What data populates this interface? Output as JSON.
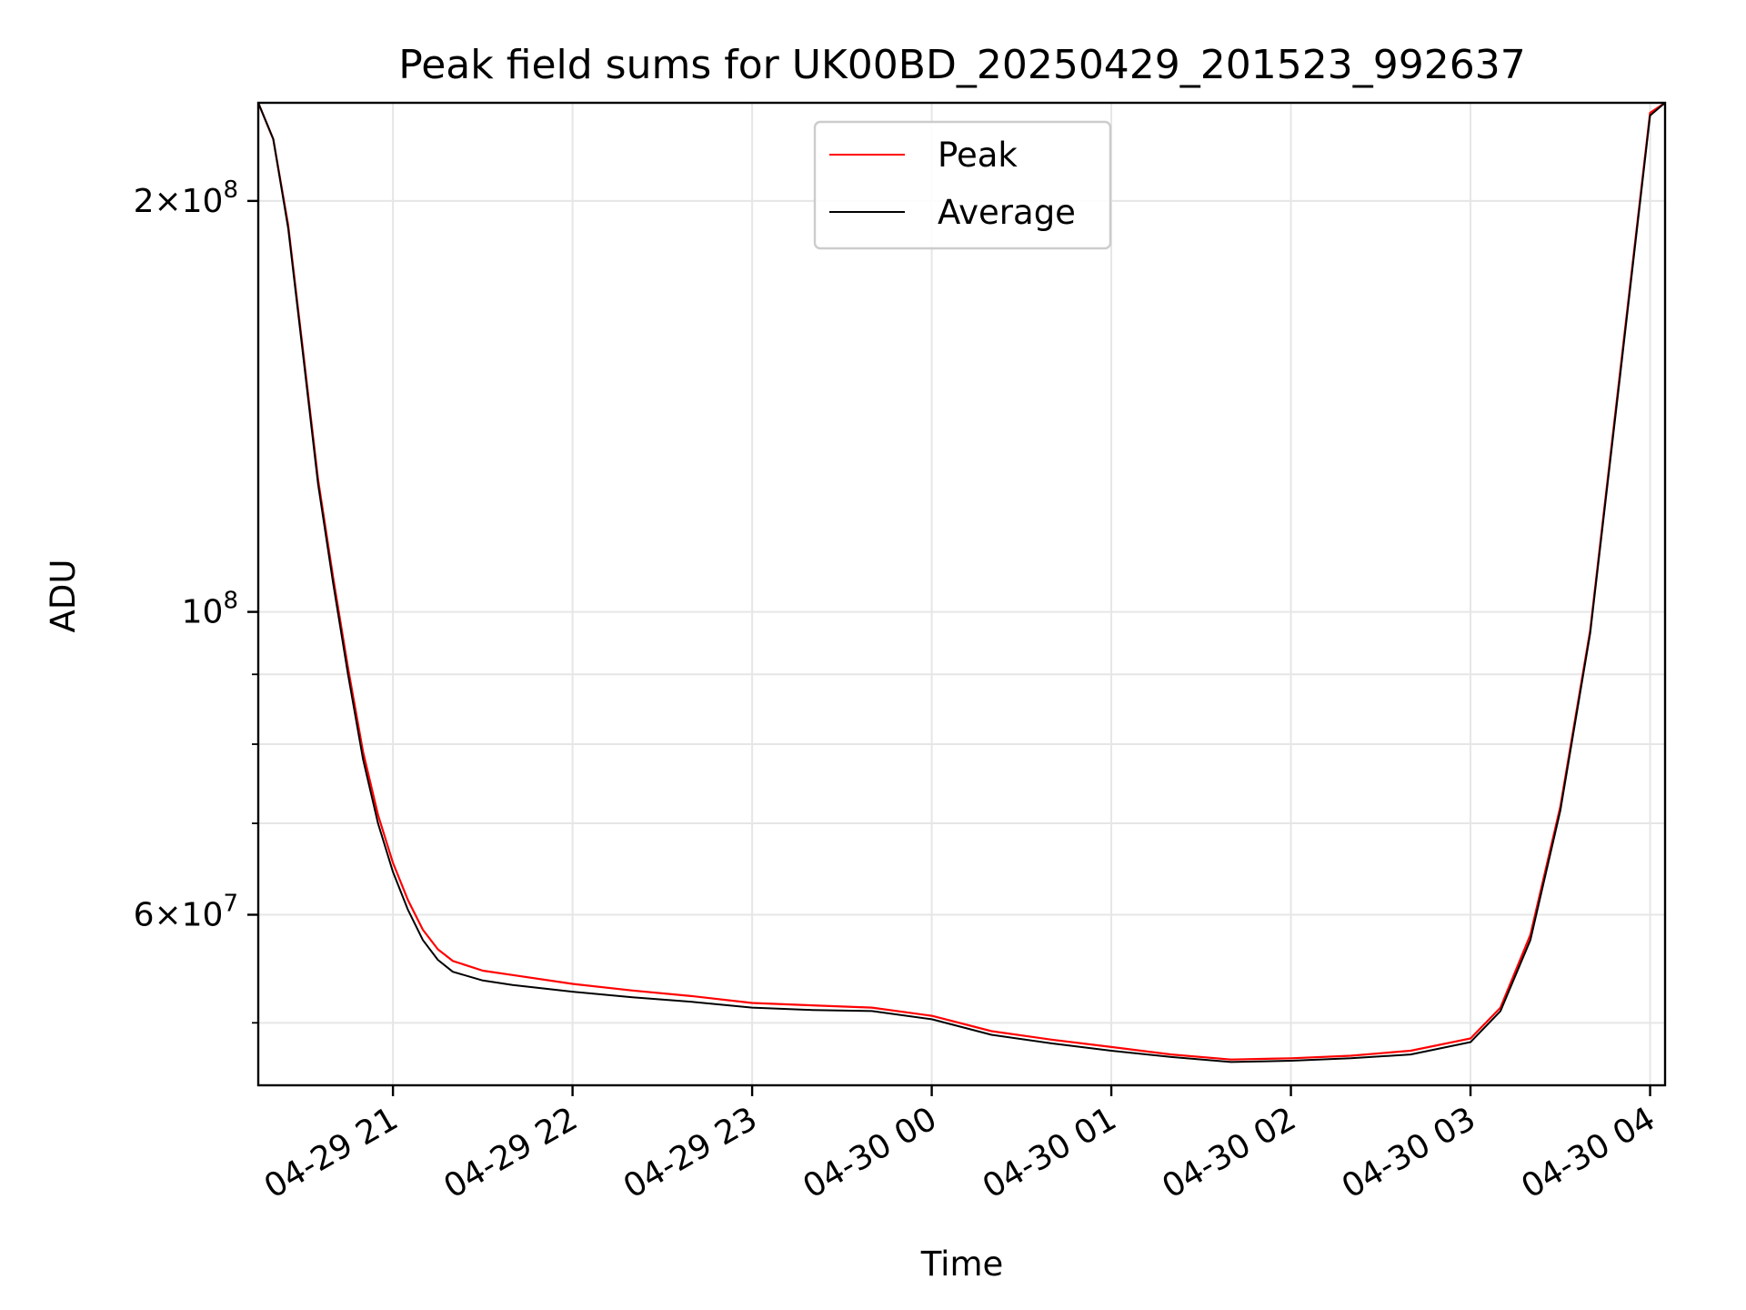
{
  "chart_data": {
    "type": "line",
    "title": "Peak field sums for UK00BD_20250429_201523_992637",
    "xlabel": "Time",
    "ylabel": "ADU",
    "y_scale": "log",
    "ylim": [
      45000000,
      236000000
    ],
    "xlim": [
      "2025-04-29 20:15",
      "2025-04-30 04:05"
    ],
    "grid": true,
    "legend_position": "top-center",
    "x_ticks": [
      {
        "x": "2025-04-29 21:00",
        "label": "04-29 21"
      },
      {
        "x": "2025-04-29 22:00",
        "label": "04-29 22"
      },
      {
        "x": "2025-04-29 23:00",
        "label": "04-29 23"
      },
      {
        "x": "2025-04-30 00:00",
        "label": "04-30 00"
      },
      {
        "x": "2025-04-30 01:00",
        "label": "04-30 01"
      },
      {
        "x": "2025-04-30 02:00",
        "label": "04-30 02"
      },
      {
        "x": "2025-04-30 03:00",
        "label": "04-30 03"
      },
      {
        "x": "2025-04-30 04:00",
        "label": "04-30 04"
      }
    ],
    "y_ticks": [
      {
        "value": 200000000,
        "base": "2",
        "exp": "8"
      },
      {
        "value": 100000000,
        "base": "",
        "exp": "8"
      },
      {
        "value": 60000000,
        "base": "6",
        "exp": "7"
      }
    ],
    "y_minor_ticks": [
      50000000,
      70000000,
      80000000,
      90000000
    ],
    "series": [
      {
        "name": "Peak",
        "color": "#ff0000",
        "points": [
          [
            "2025-04-29 20:15",
            236000000
          ],
          [
            "2025-04-29 20:20",
            222000000
          ],
          [
            "2025-04-29 20:25",
            192000000
          ],
          [
            "2025-04-29 20:30",
            155000000
          ],
          [
            "2025-04-29 20:35",
            125000000
          ],
          [
            "2025-04-29 20:40",
            106000000
          ],
          [
            "2025-04-29 20:45",
            91000000
          ],
          [
            "2025-04-29 20:50",
            79000000
          ],
          [
            "2025-04-29 20:55",
            71000000
          ],
          [
            "2025-04-29 21:00",
            65500000
          ],
          [
            "2025-04-29 21:05",
            61500000
          ],
          [
            "2025-04-29 21:10",
            58500000
          ],
          [
            "2025-04-29 21:15",
            56600000
          ],
          [
            "2025-04-29 21:20",
            55500000
          ],
          [
            "2025-04-29 21:30",
            54600000
          ],
          [
            "2025-04-29 21:40",
            54200000
          ],
          [
            "2025-04-29 22:00",
            53400000
          ],
          [
            "2025-04-29 22:20",
            52800000
          ],
          [
            "2025-04-29 22:40",
            52300000
          ],
          [
            "2025-04-29 23:00",
            51700000
          ],
          [
            "2025-04-29 23:20",
            51500000
          ],
          [
            "2025-04-29 23:40",
            51300000
          ],
          [
            "2025-04-30 00:00",
            50600000
          ],
          [
            "2025-04-30 00:20",
            49300000
          ],
          [
            "2025-04-30 00:40",
            48600000
          ],
          [
            "2025-04-30 01:00",
            48000000
          ],
          [
            "2025-04-30 01:20",
            47400000
          ],
          [
            "2025-04-30 01:40",
            47000000
          ],
          [
            "2025-04-30 02:00",
            47100000
          ],
          [
            "2025-04-30 02:20",
            47300000
          ],
          [
            "2025-04-30 02:40",
            47700000
          ],
          [
            "2025-04-30 03:00",
            48700000
          ],
          [
            "2025-04-30 03:10",
            51300000
          ],
          [
            "2025-04-30 03:20",
            58000000
          ],
          [
            "2025-04-30 03:30",
            72000000
          ],
          [
            "2025-04-30 03:40",
            97000000
          ],
          [
            "2025-04-30 03:50",
            150000000
          ],
          [
            "2025-04-30 04:00",
            232000000
          ],
          [
            "2025-04-30 04:05",
            236000000
          ]
        ]
      },
      {
        "name": "Average",
        "color": "#000000",
        "points": [
          [
            "2025-04-29 20:15",
            236000000
          ],
          [
            "2025-04-29 20:20",
            222000000
          ],
          [
            "2025-04-29 20:25",
            191000000
          ],
          [
            "2025-04-29 20:30",
            154000000
          ],
          [
            "2025-04-29 20:35",
            124000000
          ],
          [
            "2025-04-29 20:40",
            105000000
          ],
          [
            "2025-04-29 20:45",
            90000000
          ],
          [
            "2025-04-29 20:50",
            78000000
          ],
          [
            "2025-04-29 20:55",
            70000000
          ],
          [
            "2025-04-29 21:00",
            64500000
          ],
          [
            "2025-04-29 21:05",
            60500000
          ],
          [
            "2025-04-29 21:10",
            57500000
          ],
          [
            "2025-04-29 21:15",
            55600000
          ],
          [
            "2025-04-29 21:20",
            54500000
          ],
          [
            "2025-04-29 21:30",
            53700000
          ],
          [
            "2025-04-29 21:40",
            53300000
          ],
          [
            "2025-04-29 22:00",
            52700000
          ],
          [
            "2025-04-29 22:20",
            52200000
          ],
          [
            "2025-04-29 22:40",
            51800000
          ],
          [
            "2025-04-29 23:00",
            51300000
          ],
          [
            "2025-04-29 23:20",
            51100000
          ],
          [
            "2025-04-29 23:40",
            51000000
          ],
          [
            "2025-04-30 00:00",
            50300000
          ],
          [
            "2025-04-30 00:20",
            49000000
          ],
          [
            "2025-04-30 00:40",
            48300000
          ],
          [
            "2025-04-30 01:00",
            47700000
          ],
          [
            "2025-04-30 01:20",
            47200000
          ],
          [
            "2025-04-30 01:40",
            46800000
          ],
          [
            "2025-04-30 02:00",
            46900000
          ],
          [
            "2025-04-30 02:20",
            47100000
          ],
          [
            "2025-04-30 02:40",
            47400000
          ],
          [
            "2025-04-30 03:00",
            48400000
          ],
          [
            "2025-04-30 03:10",
            51000000
          ],
          [
            "2025-04-30 03:20",
            57500000
          ],
          [
            "2025-04-30 03:30",
            71500000
          ],
          [
            "2025-04-30 03:40",
            96500000
          ],
          [
            "2025-04-30 03:50",
            149000000
          ],
          [
            "2025-04-30 04:00",
            231000000
          ],
          [
            "2025-04-30 04:05",
            236000000
          ]
        ]
      }
    ]
  }
}
